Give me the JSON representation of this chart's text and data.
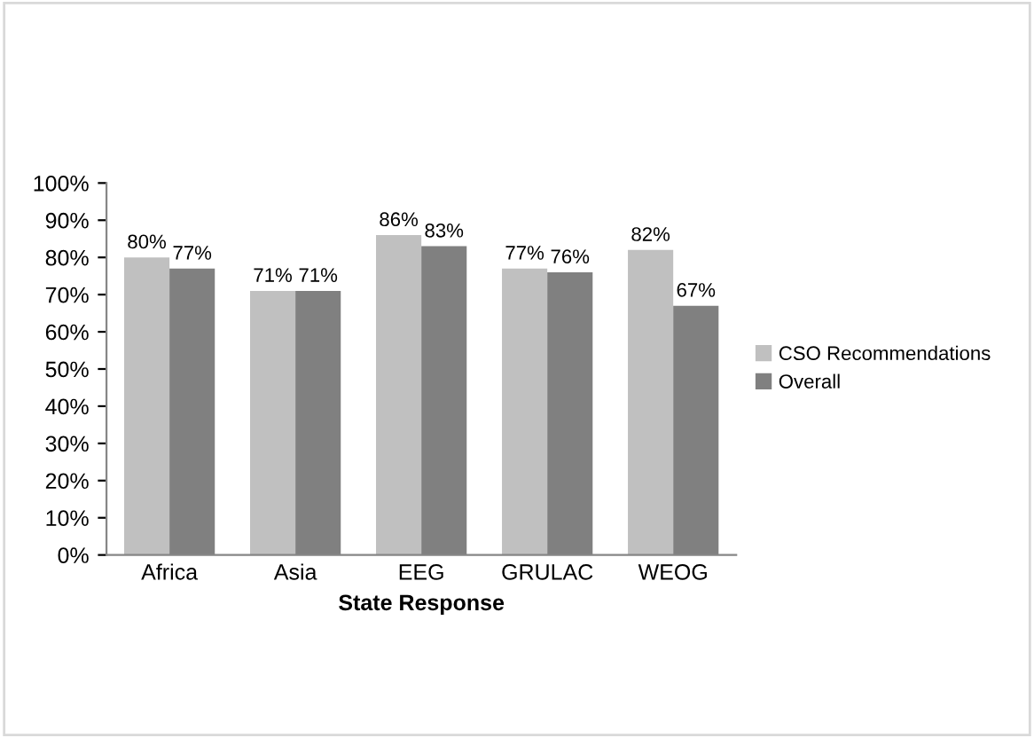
{
  "chart_data": {
    "type": "bar",
    "xlabel": "State Response",
    "categories": [
      "Africa",
      "Asia",
      "EEG",
      "GRULAC",
      "WEOG"
    ],
    "series": [
      {
        "name": "CSO Recommendations",
        "color": "#c0c0c0",
        "values": [
          80,
          71,
          86,
          77,
          82
        ],
        "value_labels": [
          "80%",
          "71%",
          "86%",
          "77%",
          "82%"
        ]
      },
      {
        "name": "Overall",
        "color": "#808080",
        "values": [
          77,
          71,
          83,
          76,
          67
        ],
        "value_labels": [
          "77%",
          "71%",
          "83%",
          "76%",
          "67%"
        ]
      }
    ],
    "ylim": [
      0,
      100
    ],
    "yticks": [
      {
        "value": 0,
        "label": "0%"
      },
      {
        "value": 10,
        "label": "10%"
      },
      {
        "value": 20,
        "label": "20%"
      },
      {
        "value": 30,
        "label": "30%"
      },
      {
        "value": 40,
        "label": "40%"
      },
      {
        "value": 50,
        "label": "50%"
      },
      {
        "value": 60,
        "label": "60%"
      },
      {
        "value": 70,
        "label": "70%"
      },
      {
        "value": 80,
        "label": "80%"
      },
      {
        "value": 90,
        "label": "90%"
      },
      {
        "value": 100,
        "label": "100%"
      }
    ],
    "grid": false,
    "legend": "right"
  }
}
